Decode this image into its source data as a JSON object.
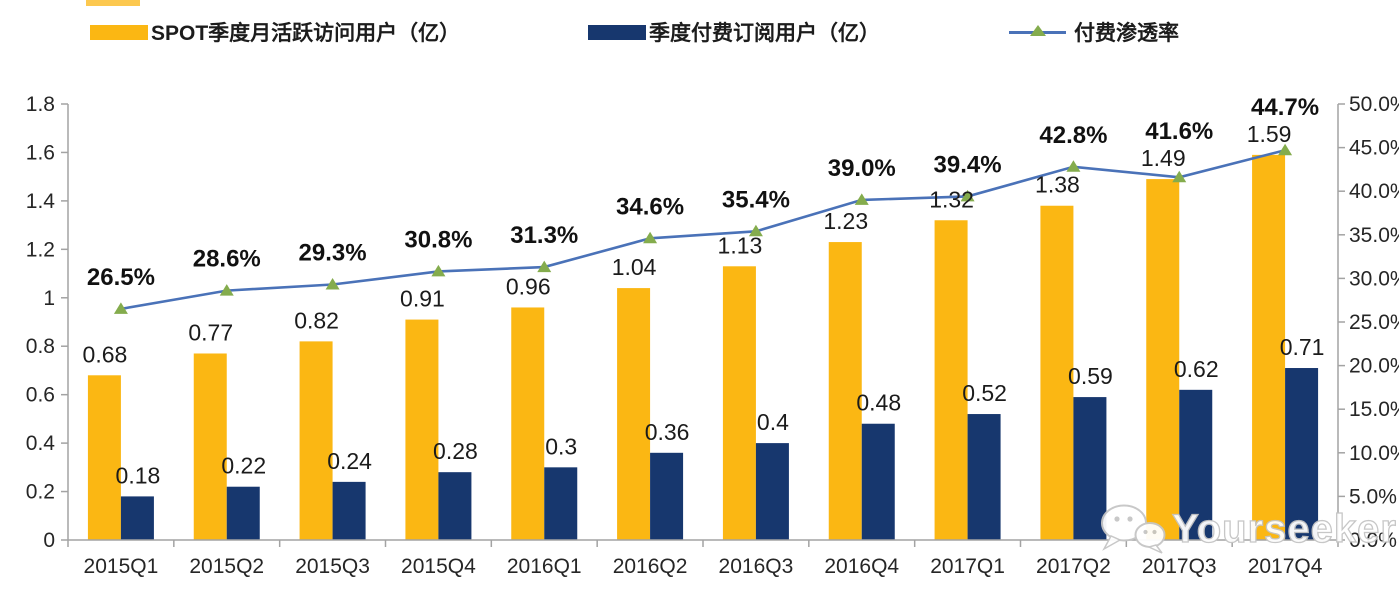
{
  "watermark": {
    "text": "Yourseeker",
    "icon": "wechat-icon"
  },
  "chart_data": {
    "type": "combo",
    "title": "",
    "categories": [
      "2015Q1",
      "2015Q2",
      "2015Q3",
      "2015Q4",
      "2016Q1",
      "2016Q2",
      "2016Q3",
      "2016Q4",
      "2017Q1",
      "2017Q2",
      "2017Q3",
      "2017Q4"
    ],
    "series": [
      {
        "name": "SPOT季度月活跃访问用户（亿）",
        "type": "bar",
        "axis": "left",
        "color": "#FBB713",
        "values": [
          0.68,
          0.77,
          0.82,
          0.91,
          0.96,
          1.04,
          1.13,
          1.23,
          1.32,
          1.38,
          1.49,
          1.59
        ],
        "labels": [
          "0.68",
          "0.77",
          "0.82",
          "0.91",
          "0.96",
          "1.04",
          "1.13",
          "1.23",
          "1.32",
          "1.38",
          "1.49",
          "1.59"
        ]
      },
      {
        "name": "季度付费订阅用户（亿）",
        "type": "bar",
        "axis": "left",
        "color": "#17376E",
        "values": [
          0.18,
          0.22,
          0.24,
          0.28,
          0.3,
          0.36,
          0.4,
          0.48,
          0.52,
          0.59,
          0.62,
          0.71
        ],
        "labels": [
          "0.18",
          "0.22",
          "0.24",
          "0.28",
          "0.3",
          "0.36",
          "0.4",
          "0.48",
          "0.52",
          "0.59",
          "0.62",
          "0.71"
        ]
      },
      {
        "name": "付费渗透率",
        "type": "line",
        "axis": "right",
        "color": "#4A72B8",
        "marker": "triangle",
        "marker_color": "#84AC4D",
        "values": [
          26.5,
          28.6,
          29.3,
          30.8,
          31.3,
          34.6,
          35.4,
          39.0,
          39.4,
          42.8,
          41.6,
          44.7
        ],
        "labels": [
          "26.5%",
          "28.6%",
          "29.3%",
          "30.8%",
          "31.3%",
          "34.6%",
          "35.4%",
          "39.0%",
          "39.4%",
          "42.8%",
          "41.6%",
          "44.7%"
        ]
      }
    ],
    "left_axis": {
      "min": 0,
      "max": 1.8,
      "tick_labels_top_to_bottom": [
        "1.8",
        "1.6",
        "1.4",
        "1.2",
        "1",
        "0.8",
        "0.6",
        "0.4",
        "0.2",
        "0"
      ]
    },
    "right_axis": {
      "min": 0,
      "max": 50,
      "tick_labels_top_to_bottom": [
        "50.0%",
        "45.0%",
        "40.0%",
        "35.0%",
        "30.0%",
        "25.0%",
        "20.0%",
        "15.0%",
        "10.0%",
        "5.0%",
        "0.0%"
      ]
    },
    "grid": false,
    "legend_position": "top",
    "axis_color": "#A3A3A3"
  }
}
